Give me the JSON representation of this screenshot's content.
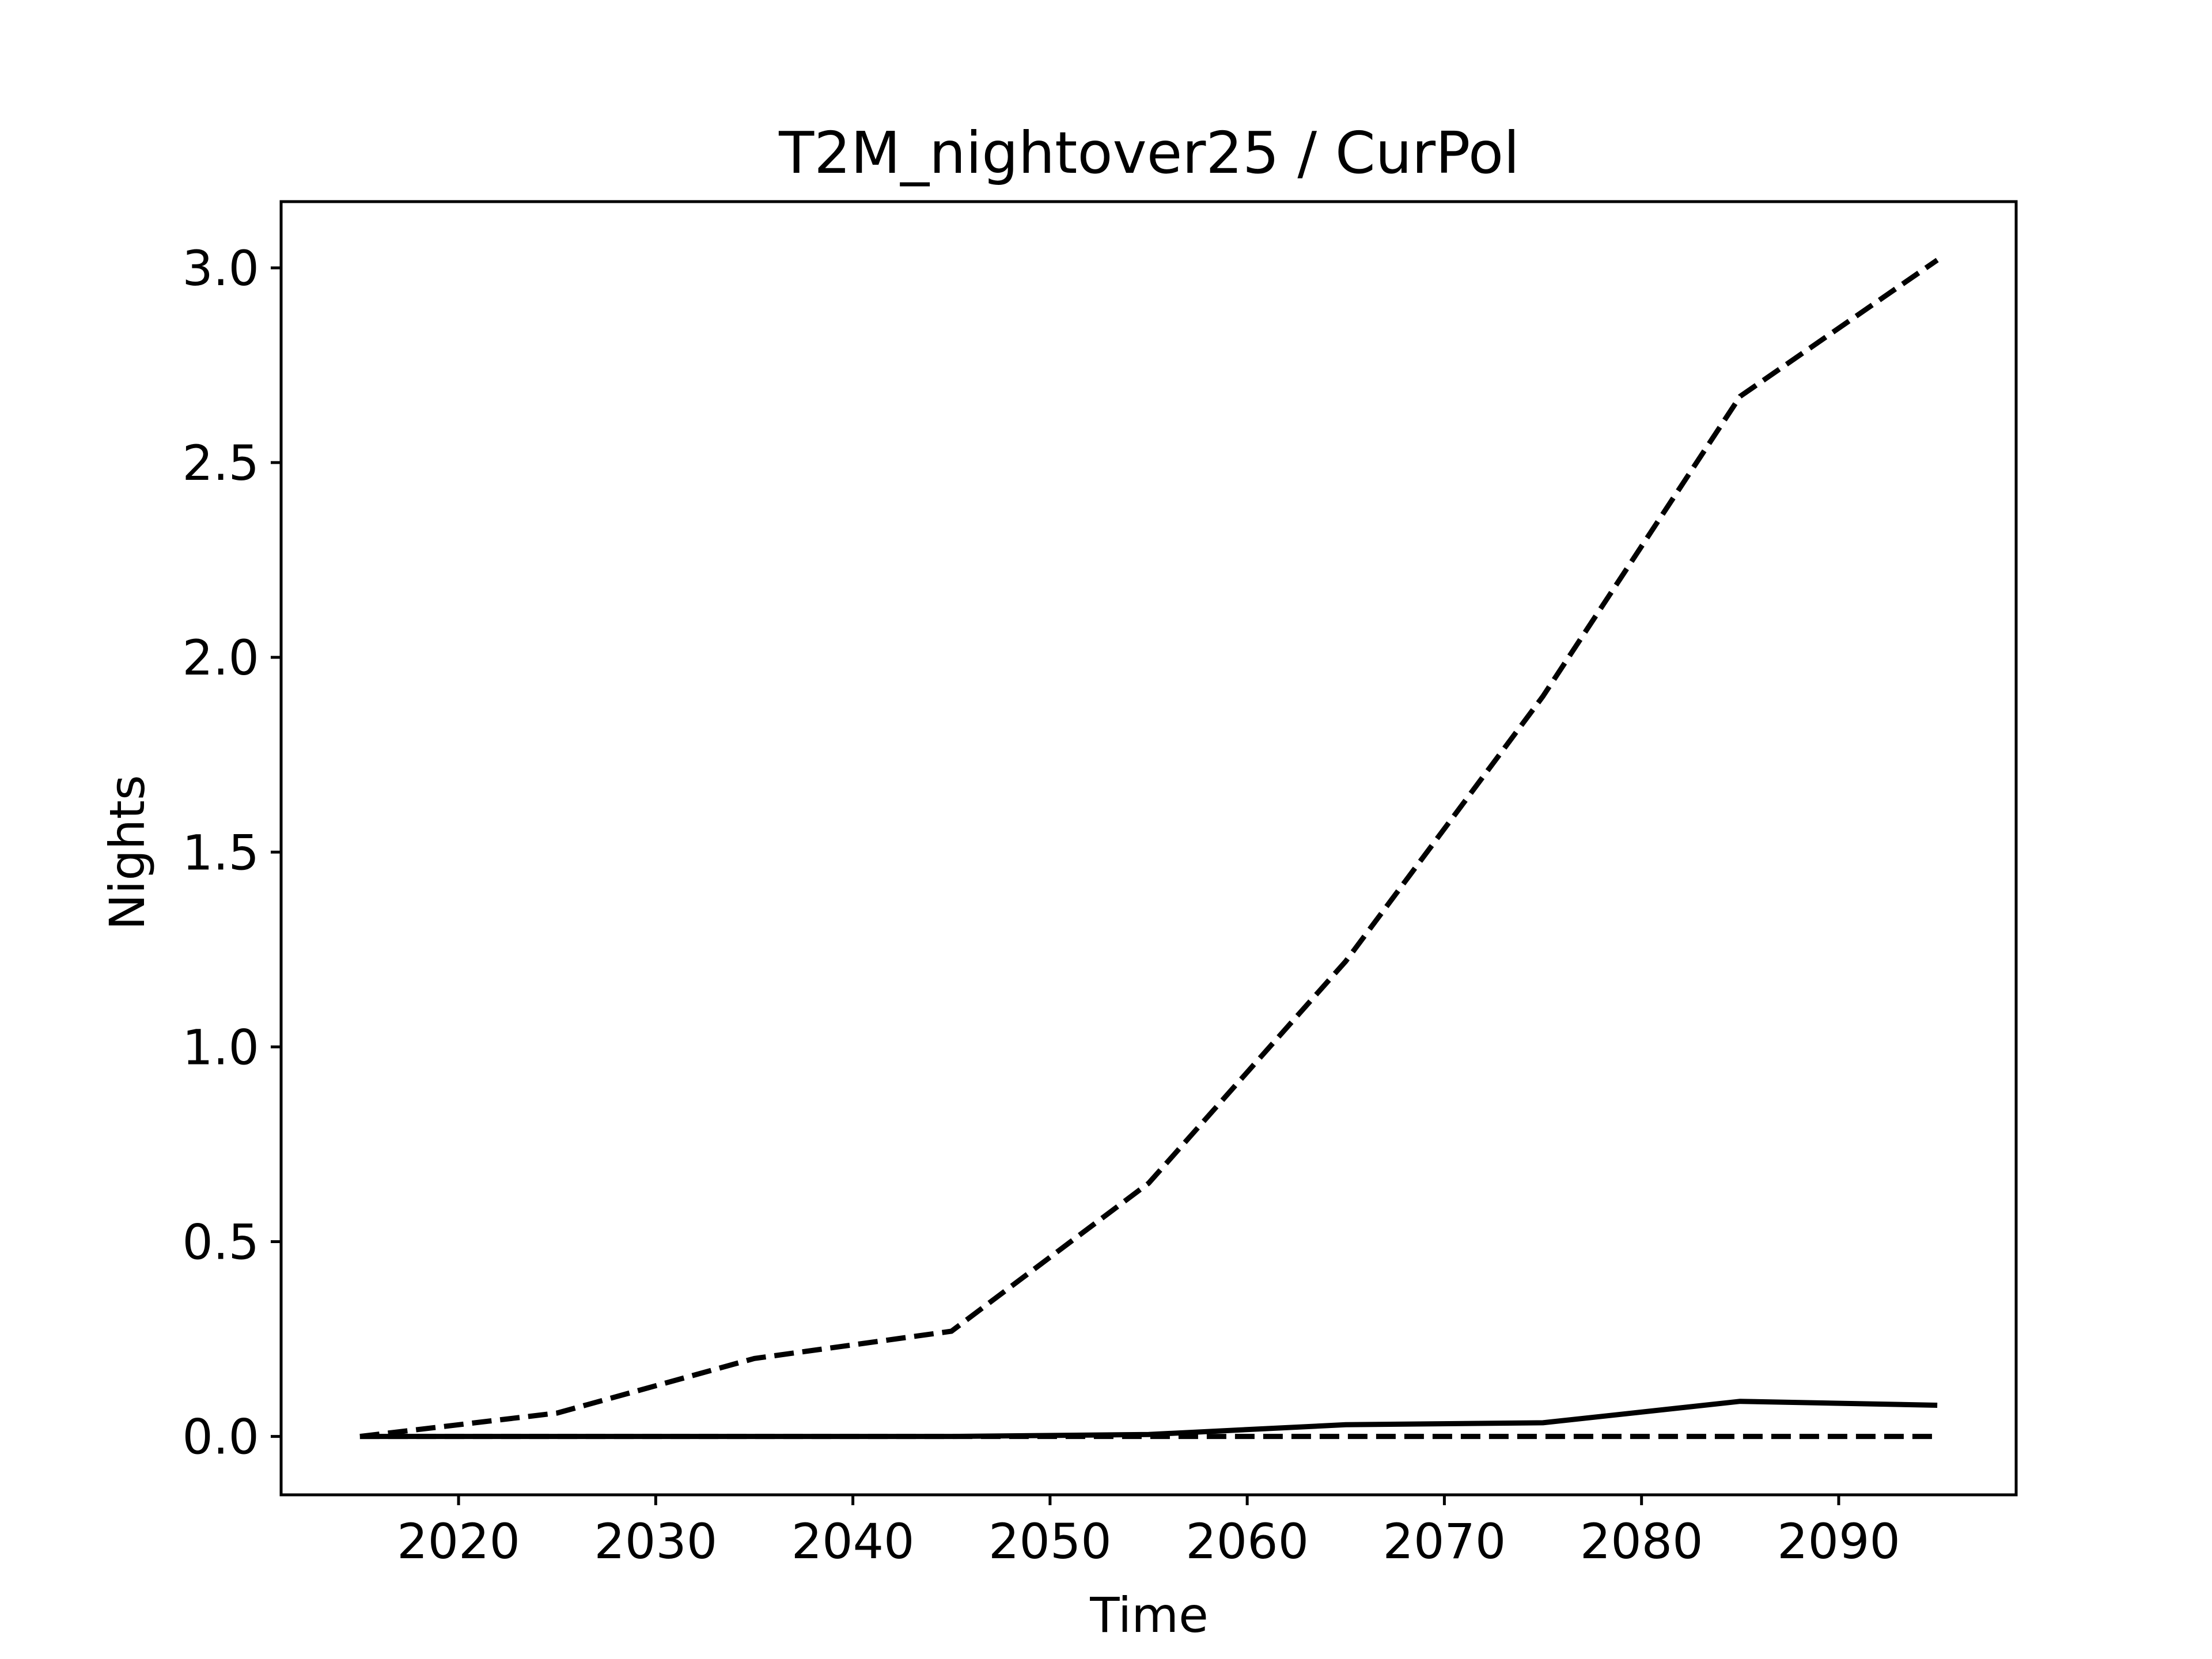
{
  "chart_data": {
    "type": "line",
    "title": "T2M_nightover25 / CurPol",
    "xlabel": "Time",
    "ylabel": "Nights",
    "xlim": [
      2011,
      2099
    ],
    "ylim": [
      -0.15,
      3.17
    ],
    "xticks": [
      2020,
      2030,
      2040,
      2050,
      2060,
      2070,
      2080,
      2090
    ],
    "yticks": [
      0.0,
      0.5,
      1.0,
      1.5,
      2.0,
      2.5,
      3.0
    ],
    "xtick_labels": [
      "2020",
      "2030",
      "2040",
      "2050",
      "2060",
      "2070",
      "2080",
      "2090"
    ],
    "ytick_labels": [
      "0.0",
      "0.5",
      "1.0",
      "1.5",
      "2.0",
      "2.5",
      "3.0"
    ],
    "grid": false,
    "legend": "none",
    "x": [
      2015,
      2025,
      2035,
      2045,
      2055,
      2065,
      2075,
      2085,
      2095
    ],
    "series": [
      {
        "style": "dashed",
        "color": "#000000",
        "values": [
          0.0,
          0.06,
          0.2,
          0.27,
          0.65,
          1.22,
          1.9,
          2.67,
          3.02
        ]
      },
      {
        "style": "solid",
        "color": "#000000",
        "values": [
          0.0,
          0.0,
          0.0,
          0.0,
          0.005,
          0.03,
          0.035,
          0.09,
          0.08
        ]
      },
      {
        "style": "dashed",
        "color": "#000000",
        "values": [
          0.0,
          0.0,
          0.0,
          0.0,
          0.0,
          0.0,
          0.0,
          0.0,
          0.0
        ]
      }
    ]
  }
}
